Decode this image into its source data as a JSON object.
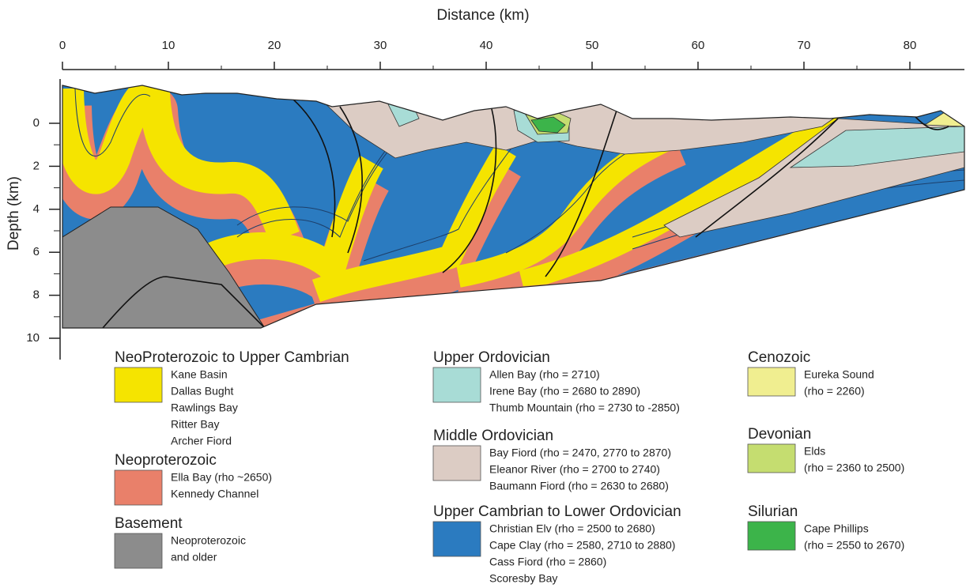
{
  "axes": {
    "x_title": "Distance (km)",
    "x_ticks": [
      0,
      10,
      20,
      30,
      40,
      50,
      60,
      70,
      80
    ],
    "y_title": "Depth (km)",
    "y_ticks": [
      0,
      2,
      4,
      6,
      8,
      10
    ]
  },
  "legend": [
    {
      "title": "NeoProterozoic to Upper Cambrian",
      "color": "#f5e400",
      "items": [
        "Kane Basin",
        "Dallas Bught",
        "Rawlings Bay",
        "Ritter Bay",
        "Archer Fiord"
      ]
    },
    {
      "title": "Neoproterozoic",
      "color": "#e9806a",
      "items": [
        "Ella Bay (rho ~2650)",
        "Kennedy Channel"
      ]
    },
    {
      "title": "Basement",
      "color": "#8c8c8c",
      "items": [
        "Neoproterozoic",
        "and older"
      ]
    },
    {
      "title": "Upper Ordovician",
      "color": "#a8dcd6",
      "items": [
        "Allen Bay (rho = 2710)",
        "Irene Bay (rho = 2680 to 2890)",
        "Thumb Mountain (rho = 2730 to -2850)"
      ]
    },
    {
      "title": "Middle Ordovician",
      "color": "#dcccc4",
      "items": [
        "Bay Fiord (rho = 2470, 2770 to 2870)",
        "Eleanor River (rho = 2700 to 2740)",
        "Baumann Fiord (rho = 2630 to 2680)"
      ]
    },
    {
      "title": "Upper Cambrian to Lower Ordovician",
      "color": "#2b7bc0",
      "items": [
        "Christian Elv (rho = 2500 to 2680)",
        "Cape Clay (rho = 2580, 2710 to 2880)",
        "Cass Fiord (rho = 2860)",
        "Scoresby Bay"
      ]
    },
    {
      "title": "Cenozoic",
      "color": "#f0ee90",
      "items": [
        "Eureka Sound",
        "(rho = 2260)"
      ]
    },
    {
      "title": "Devonian",
      "color": "#c5dd70",
      "items": [
        "Elds",
        "(rho = 2360 to 2500)"
      ]
    },
    {
      "title": "Silurian",
      "color": "#3cb44a",
      "items": [
        "Cape Phillips",
        "(rho = 2550 to 2670)"
      ]
    }
  ]
}
